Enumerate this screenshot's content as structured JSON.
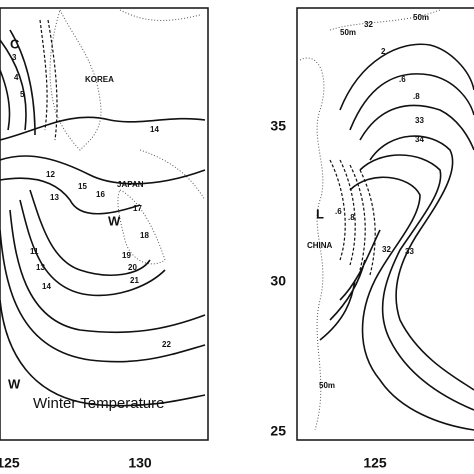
{
  "left_panel": {
    "caption": "Winter Temperature",
    "map_labels": [
      "KOREA",
      "JAPAN"
    ],
    "contour_labels": [
      "C",
      "3",
      "4",
      "5",
      "14",
      "12",
      "13",
      "15",
      "16",
      "17",
      "W",
      "18",
      "19",
      "20",
      "21",
      "11",
      "13",
      "14",
      "22",
      "W"
    ],
    "x_axis_labels": [
      "125",
      "130"
    ]
  },
  "right_panel": {
    "map_labels": [
      "CHINA",
      "L"
    ],
    "contour_labels": [
      "50m",
      "32",
      "50m",
      "2",
      ".6",
      ".8",
      "33",
      "34",
      ".6",
      ".8",
      "32",
      "33",
      "50m"
    ],
    "y_axis_labels": [
      "35",
      "30",
      "25"
    ],
    "x_axis_labels": [
      "125"
    ]
  }
}
